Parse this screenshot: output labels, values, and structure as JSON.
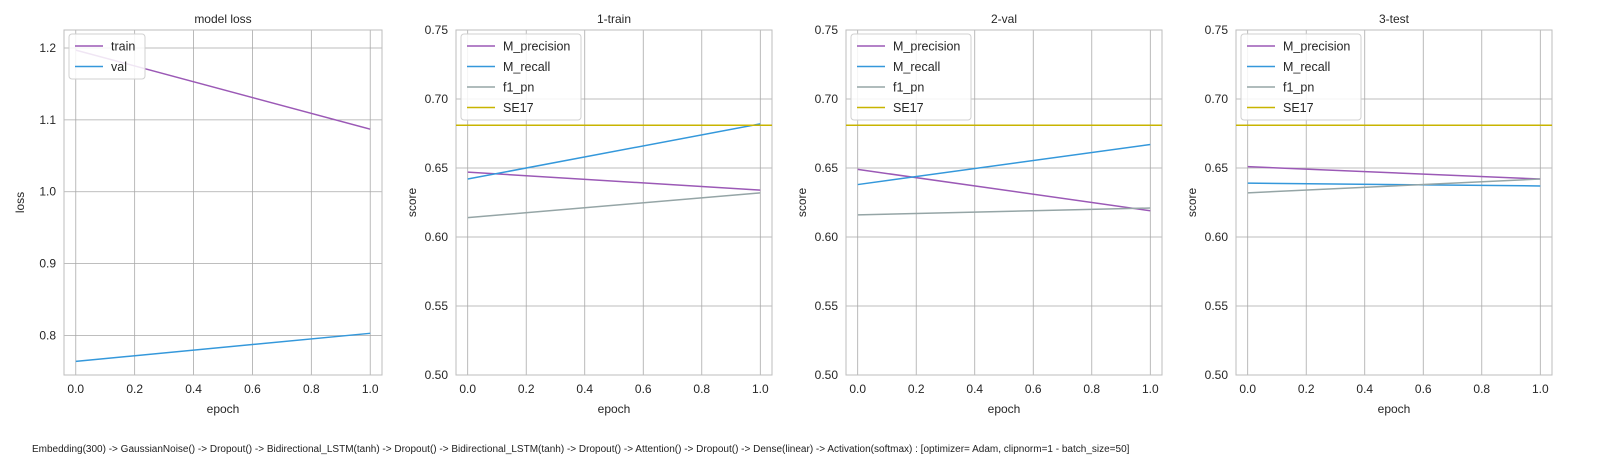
{
  "figure": {
    "caption": "Embedding(300) -> GaussianNoise() -> Dropout() -> Bidirectional_LSTM(tanh) -> Dropout() -> Bidirectional_LSTM(tanh) -> Dropout() -> Attention() -> Dropout() -> Dense(linear) -> Activation(softmax) : [optimizer= Adam, clipnorm=1 - batch_size=50]"
  },
  "colors": {
    "train": "#9b59b6",
    "val": "#3498db",
    "M_precision": "#9b59b6",
    "M_recall": "#3498db",
    "f1_pn": "#95a5a6",
    "SE17": "#c8b400"
  },
  "chart_data": [
    {
      "type": "line",
      "title": "model loss",
      "xlabel": "epoch",
      "ylabel": "loss",
      "xlim": [
        -0.04,
        1.04
      ],
      "ylim": [
        0.745,
        1.225
      ],
      "xticks": [
        0.0,
        0.2,
        0.4,
        0.6,
        0.8,
        1.0
      ],
      "yticks": [
        0.8,
        0.9,
        1.0,
        1.1,
        1.2
      ],
      "ytick_labels": [
        "0.8",
        "0.9",
        "1.0",
        "1.1",
        "1.2"
      ],
      "grid": true,
      "legend": "top-left",
      "x": [
        0,
        1
      ],
      "series": [
        {
          "name": "train",
          "values": [
            1.197,
            1.087
          ],
          "color_key": "train"
        },
        {
          "name": "val",
          "values": [
            0.764,
            0.803
          ],
          "color_key": "val"
        }
      ]
    },
    {
      "type": "line",
      "title": "1-train",
      "xlabel": "epoch",
      "ylabel": "score",
      "xlim": [
        -0.04,
        1.04
      ],
      "ylim": [
        0.5,
        0.75
      ],
      "xticks": [
        0.0,
        0.2,
        0.4,
        0.6,
        0.8,
        1.0
      ],
      "yticks": [
        0.5,
        0.55,
        0.6,
        0.65,
        0.7,
        0.75
      ],
      "ytick_labels": [
        "0.50",
        "0.55",
        "0.60",
        "0.65",
        "0.70",
        "0.75"
      ],
      "grid": true,
      "legend": "top-left",
      "x": [
        0,
        1
      ],
      "series": [
        {
          "name": "M_precision",
          "values": [
            0.647,
            0.634
          ],
          "color_key": "M_precision"
        },
        {
          "name": "M_recall",
          "values": [
            0.642,
            0.682
          ],
          "color_key": "M_recall"
        },
        {
          "name": "f1_pn",
          "values": [
            0.614,
            0.632
          ],
          "color_key": "f1_pn"
        },
        {
          "name": "SE17",
          "values": [
            0.681,
            0.681
          ],
          "color_key": "SE17",
          "hline": true
        }
      ]
    },
    {
      "type": "line",
      "title": "2-val",
      "xlabel": "epoch",
      "ylabel": "score",
      "xlim": [
        -0.04,
        1.04
      ],
      "ylim": [
        0.5,
        0.75
      ],
      "xticks": [
        0.0,
        0.2,
        0.4,
        0.6,
        0.8,
        1.0
      ],
      "yticks": [
        0.5,
        0.55,
        0.6,
        0.65,
        0.7,
        0.75
      ],
      "ytick_labels": [
        "0.50",
        "0.55",
        "0.60",
        "0.65",
        "0.70",
        "0.75"
      ],
      "grid": true,
      "legend": "top-left",
      "x": [
        0,
        1
      ],
      "series": [
        {
          "name": "M_precision",
          "values": [
            0.649,
            0.619
          ],
          "color_key": "M_precision"
        },
        {
          "name": "M_recall",
          "values": [
            0.638,
            0.667
          ],
          "color_key": "M_recall"
        },
        {
          "name": "f1_pn",
          "values": [
            0.616,
            0.621
          ],
          "color_key": "f1_pn"
        },
        {
          "name": "SE17",
          "values": [
            0.681,
            0.681
          ],
          "color_key": "SE17",
          "hline": true
        }
      ]
    },
    {
      "type": "line",
      "title": "3-test",
      "xlabel": "epoch",
      "ylabel": "score",
      "xlim": [
        -0.04,
        1.04
      ],
      "ylim": [
        0.5,
        0.75
      ],
      "xticks": [
        0.0,
        0.2,
        0.4,
        0.6,
        0.8,
        1.0
      ],
      "yticks": [
        0.5,
        0.55,
        0.6,
        0.65,
        0.7,
        0.75
      ],
      "ytick_labels": [
        "0.50",
        "0.55",
        "0.60",
        "0.65",
        "0.70",
        "0.75"
      ],
      "grid": true,
      "legend": "top-left",
      "x": [
        0,
        1
      ],
      "series": [
        {
          "name": "M_precision",
          "values": [
            0.651,
            0.642
          ],
          "color_key": "M_precision"
        },
        {
          "name": "M_recall",
          "values": [
            0.639,
            0.637
          ],
          "color_key": "M_recall"
        },
        {
          "name": "f1_pn",
          "values": [
            0.632,
            0.642
          ],
          "color_key": "f1_pn"
        },
        {
          "name": "SE17",
          "values": [
            0.681,
            0.681
          ],
          "color_key": "SE17",
          "hline": true
        }
      ]
    }
  ]
}
